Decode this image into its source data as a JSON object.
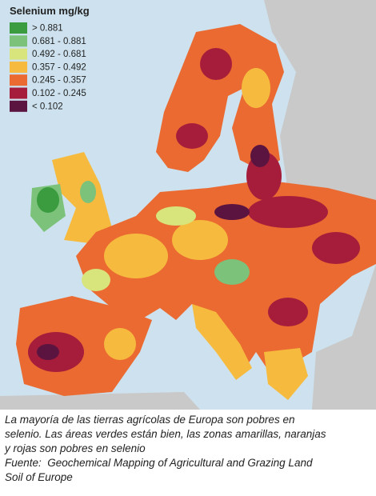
{
  "legend": {
    "title": "Selenium mg/kg",
    "items": [
      {
        "label": "> 0.881",
        "color": "#3a9c3e"
      },
      {
        "label": "0.681 - 0.881",
        "color": "#7cc27b"
      },
      {
        "label": "0.492 - 0.681",
        "color": "#d8e47c"
      },
      {
        "label": "0.357 - 0.492",
        "color": "#f6bb3e"
      },
      {
        "label": "0.245 - 0.357",
        "color": "#ea6a31"
      },
      {
        "label": "0.102 - 0.245",
        "color": "#a61d3b"
      },
      {
        "label": "< 0.102",
        "color": "#5b1440"
      }
    ]
  },
  "caption": {
    "lines": [
      "La mayoría de las tierras agrícolas de Europa son pobres en",
      "selenio. Las áreas verdes están bien, las zonas amarillas, naranjas",
      "y rojas son pobres en selenio",
      "Fuente:  Geochemical Mapping of Agricultural and Grazing Land",
      "Soil of Europe"
    ]
  }
}
